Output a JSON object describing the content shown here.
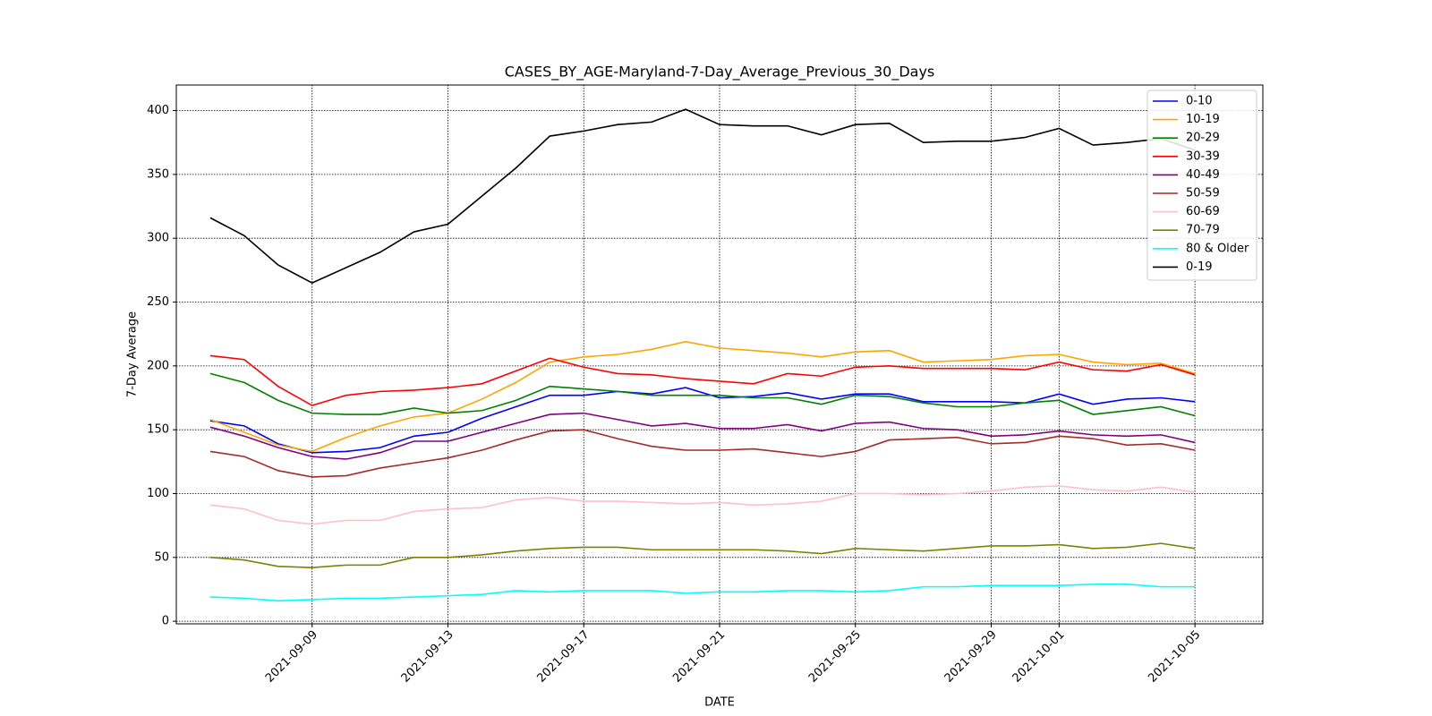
{
  "chart_data": {
    "type": "line",
    "title": "CASES_BY_AGE-Maryland-7-Day_Average_Previous_30_Days",
    "xlabel": "DATE",
    "ylabel": "7-Day Average",
    "x": [
      "2021-09-06",
      "2021-09-07",
      "2021-09-08",
      "2021-09-09",
      "2021-09-10",
      "2021-09-11",
      "2021-09-12",
      "2021-09-13",
      "2021-09-14",
      "2021-09-15",
      "2021-09-16",
      "2021-09-17",
      "2021-09-18",
      "2021-09-19",
      "2021-09-20",
      "2021-09-21",
      "2021-09-22",
      "2021-09-23",
      "2021-09-24",
      "2021-09-25",
      "2021-09-26",
      "2021-09-27",
      "2021-09-28",
      "2021-09-29",
      "2021-09-30",
      "2021-10-01",
      "2021-10-02",
      "2021-10-03",
      "2021-10-04",
      "2021-10-05"
    ],
    "series": [
      {
        "name": "0-10",
        "color": "#0000ff",
        "values": [
          157,
          153,
          139,
          132,
          133,
          136,
          145,
          148,
          159,
          168,
          177,
          177,
          180,
          178,
          183,
          175,
          176,
          179,
          174,
          178,
          178,
          172,
          172,
          172,
          171,
          178,
          170,
          174,
          175,
          172
        ]
      },
      {
        "name": "10-19",
        "color": "#ffa500",
        "values": [
          158,
          148,
          138,
          133,
          144,
          153,
          160,
          163,
          174,
          187,
          203,
          207,
          209,
          213,
          219,
          214,
          212,
          210,
          207,
          211,
          212,
          203,
          204,
          205,
          208,
          209,
          203,
          201,
          202,
          194
        ]
      },
      {
        "name": "20-29",
        "color": "#008000",
        "values": [
          194,
          187,
          173,
          163,
          162,
          162,
          167,
          163,
          165,
          173,
          184,
          182,
          180,
          177,
          177,
          177,
          175,
          175,
          170,
          177,
          176,
          171,
          168,
          168,
          171,
          173,
          162,
          165,
          168,
          161
        ]
      },
      {
        "name": "30-39",
        "color": "#ff0000",
        "values": [
          208,
          205,
          184,
          169,
          177,
          180,
          181,
          183,
          186,
          196,
          206,
          199,
          194,
          193,
          190,
          188,
          186,
          194,
          192,
          199,
          200,
          198,
          198,
          198,
          197,
          203,
          197,
          196,
          201,
          193
        ]
      },
      {
        "name": "40-49",
        "color": "#800080",
        "values": [
          152,
          145,
          136,
          129,
          127,
          132,
          141,
          141,
          148,
          155,
          162,
          163,
          158,
          153,
          155,
          151,
          151,
          154,
          149,
          155,
          156,
          151,
          150,
          145,
          146,
          149,
          146,
          145,
          146,
          140
        ]
      },
      {
        "name": "50-59",
        "color": "#a52a2a",
        "values": [
          133,
          129,
          118,
          113,
          114,
          120,
          124,
          128,
          134,
          142,
          149,
          150,
          143,
          137,
          134,
          134,
          135,
          132,
          129,
          133,
          142,
          143,
          144,
          139,
          140,
          145,
          143,
          138,
          139,
          134
        ]
      },
      {
        "name": "60-69",
        "color": "#ffc0cb",
        "values": [
          91,
          88,
          79,
          76,
          79,
          79,
          86,
          88,
          89,
          95,
          97,
          94,
          94,
          93,
          92,
          93,
          91,
          92,
          94,
          100,
          100,
          99,
          100,
          102,
          105,
          106,
          103,
          102,
          105,
          101
        ]
      },
      {
        "name": "70-79",
        "color": "#808000",
        "values": [
          50,
          48,
          43,
          42,
          44,
          44,
          50,
          50,
          52,
          55,
          57,
          58,
          58,
          56,
          56,
          56,
          56,
          55,
          53,
          57,
          56,
          55,
          57,
          59,
          59,
          60,
          57,
          58,
          61,
          57
        ]
      },
      {
        "name": "80 & Older",
        "color": "#00ffff",
        "values": [
          19,
          18,
          16,
          17,
          18,
          18,
          19,
          20,
          21,
          24,
          23,
          24,
          24,
          24,
          22,
          23,
          23,
          24,
          24,
          23,
          24,
          27,
          27,
          28,
          28,
          28,
          29,
          29,
          27,
          27
        ]
      },
      {
        "name": "0-19",
        "color": "#000000",
        "values": [
          316,
          302,
          279,
          265,
          277,
          289,
          305,
          311,
          333,
          355,
          380,
          384,
          389,
          391,
          401,
          389,
          388,
          388,
          381,
          389,
          390,
          375,
          376,
          376,
          379,
          386,
          373,
          375,
          378,
          369
        ]
      }
    ],
    "xlim": [
      "2021-09-05",
      "2021-10-07"
    ],
    "xticks": [
      "2021-09-09",
      "2021-09-13",
      "2021-09-17",
      "2021-09-21",
      "2021-09-25",
      "2021-09-29",
      "2021-10-01",
      "2021-10-05"
    ],
    "ylim": [
      -2,
      420
    ],
    "yticks": [
      0,
      50,
      100,
      150,
      200,
      250,
      300,
      350,
      400
    ],
    "grid": true,
    "legend": "upper right"
  }
}
